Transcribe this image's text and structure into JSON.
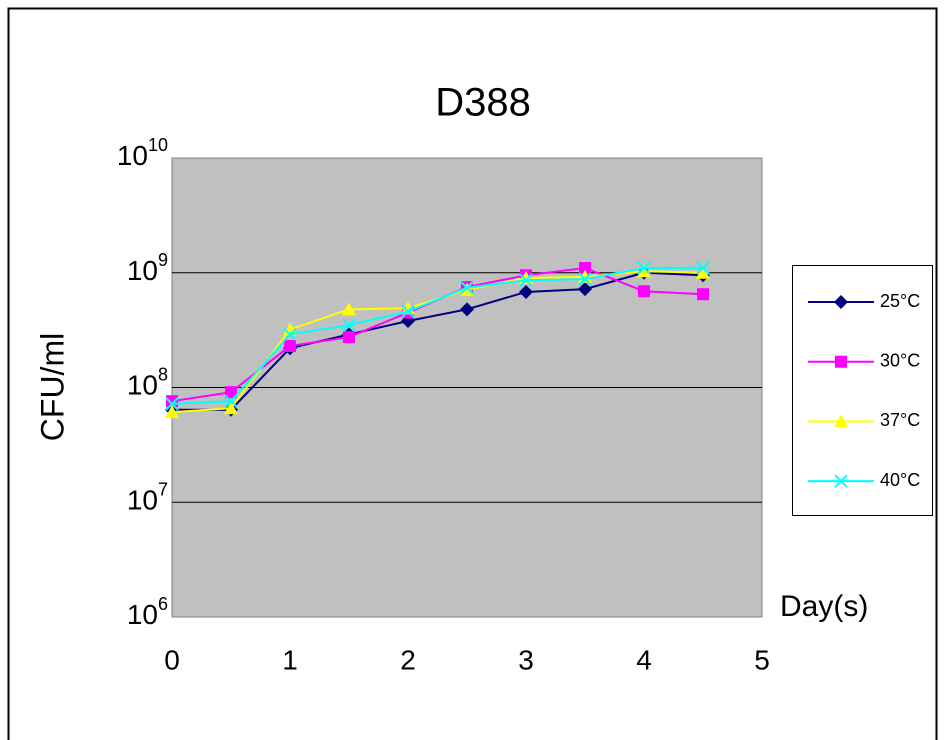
{
  "chart_data": {
    "type": "line",
    "title": "D388",
    "x_label": "Day(s)",
    "y_label": "CFU/ml",
    "x": [
      0,
      0.5,
      1,
      1.5,
      2,
      2.5,
      3,
      3.5,
      4,
      4.5
    ],
    "xlim": [
      0,
      5
    ],
    "xticks": [
      0,
      1,
      2,
      3,
      4,
      5
    ],
    "ylim": [
      1000000,
      10000000000
    ],
    "ylog": true,
    "yticks": [
      {
        "value": 1000000,
        "label": "10^6"
      },
      {
        "value": 10000000,
        "label": "10^7"
      },
      {
        "value": 100000000,
        "label": "10^8"
      },
      {
        "value": 1000000000,
        "label": "10^9"
      },
      {
        "value": 10000000000,
        "label": "10^10"
      }
    ],
    "grid": true,
    "legend": "right",
    "plot_background": "#c0c0c0",
    "series": [
      {
        "name": "25°C",
        "color": "#000080",
        "marker": "diamond",
        "values": [
          64000000,
          64000000,
          220000000,
          290000000,
          380000000,
          480000000,
          680000000,
          720000000,
          1000000000,
          950000000
        ]
      },
      {
        "name": "30°C",
        "color": "#ff00ff",
        "marker": "square",
        "values": [
          76000000,
          91000000,
          230000000,
          275000000,
          450000000,
          750000000,
          950000000,
          1100000000,
          690000000,
          650000000
        ]
      },
      {
        "name": "37°C",
        "color": "#ffff00",
        "marker": "triangle",
        "values": [
          61000000,
          66000000,
          320000000,
          480000000,
          490000000,
          710000000,
          900000000,
          920000000,
          1030000000,
          1000000000
        ]
      },
      {
        "name": "40°C",
        "color": "#00ffff",
        "marker": "x",
        "values": [
          72000000,
          76000000,
          290000000,
          350000000,
          460000000,
          740000000,
          860000000,
          880000000,
          1100000000,
          1100000000
        ]
      }
    ]
  }
}
